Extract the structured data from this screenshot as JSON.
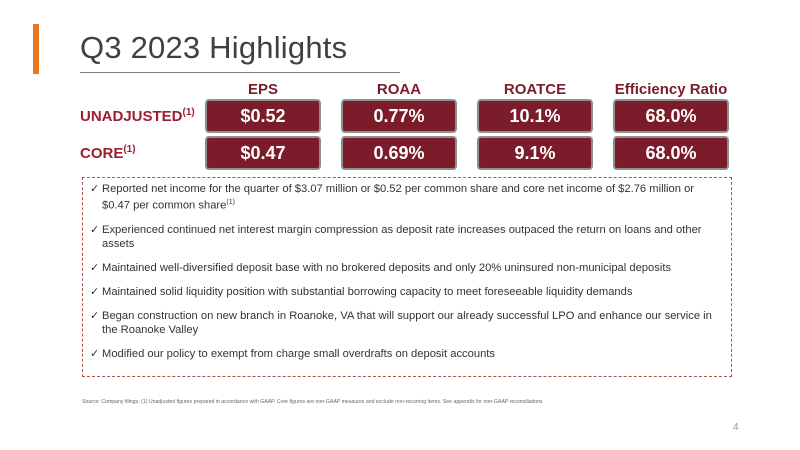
{
  "title": "Q3 2023 Highlights",
  "columns": [
    "EPS",
    "ROAA",
    "ROATCE",
    "Efficiency Ratio"
  ],
  "rows": [
    {
      "label": "UNADJUSTED",
      "note": "(1)",
      "values": [
        "$0.52",
        "0.77%",
        "10.1%",
        "68.0%"
      ]
    },
    {
      "label": "CORE",
      "note": "(1)",
      "values": [
        "$0.47",
        "0.69%",
        "9.1%",
        "68.0%"
      ]
    }
  ],
  "bullets": [
    {
      "text": "Reported net income for the quarter of $3.07 million or $0.52 per common share and core net income of $2.76 million or $0.47 per common share",
      "note": "(1)"
    },
    {
      "text": "Experienced continued net interest margin compression as deposit rate increases outpaced the return on loans and other assets",
      "note": ""
    },
    {
      "text": "Maintained well-diversified deposit base with no brokered deposits and only 20% uninsured non-municipal deposits",
      "note": ""
    },
    {
      "text": "Maintained solid liquidity position with substantial borrowing capacity to meet foreseeable liquidity demands",
      "note": ""
    },
    {
      "text": "Began construction on new branch in Roanoke, VA that will support our already successful LPO and enhance our service in the Roanoke Valley",
      "note": ""
    },
    {
      "text": "Modified our policy to exempt from charge small overdrafts on deposit accounts",
      "note": ""
    }
  ],
  "check_glyph": "✓",
  "source": "Source: Company filings; (1) Unadjusted figures prepared in accordance with GAAP. Core figures are non-GAAP measures and exclude non-recurring items. See appendix for non-GAAP reconciliations",
  "page_number": "4",
  "colors": {
    "accent": "#e87722",
    "brand": "#7b1c2a",
    "label": "#9b1e2f"
  }
}
